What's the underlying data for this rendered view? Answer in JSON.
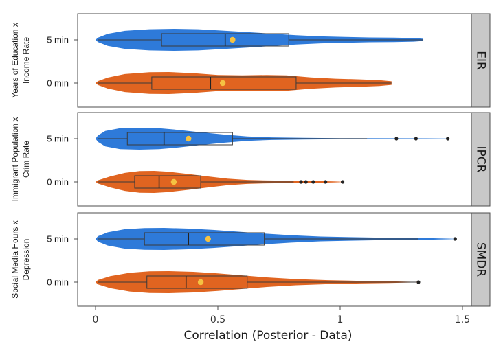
{
  "chart_data": {
    "type": "violin",
    "xlabel": "Correlation (Posterior - Data)",
    "xlim": [
      -0.08,
      1.58
    ],
    "x_ticks": [
      0,
      0.5,
      1,
      1.5
    ],
    "x_tick_labels": [
      "0",
      "0.5",
      "1",
      "1.5"
    ],
    "colors": {
      "5 min": "#2e7ad9",
      "0 min": "#e06420"
    },
    "panels": [
      {
        "strip": "EIR",
        "title_lines": [
          "Years of Education x",
          "Income Rate"
        ],
        "groups": [
          {
            "label": "5 min",
            "min": 0.01,
            "q1": 0.27,
            "median": 0.53,
            "q3": 0.79,
            "max": 1.34,
            "mean": 0.56,
            "outliers": [],
            "density": [
              [
                0.0,
                0.0
              ],
              [
                0.01,
                0.2
              ],
              [
                0.05,
                0.55
              ],
              [
                0.12,
                0.82
              ],
              [
                0.22,
                0.96
              ],
              [
                0.32,
                1.0
              ],
              [
                0.42,
                0.96
              ],
              [
                0.52,
                0.84
              ],
              [
                0.62,
                0.7
              ],
              [
                0.72,
                0.56
              ],
              [
                0.82,
                0.42
              ],
              [
                0.92,
                0.32
              ],
              [
                1.02,
                0.26
              ],
              [
                1.12,
                0.22
              ],
              [
                1.22,
                0.2
              ],
              [
                1.3,
                0.16
              ],
              [
                1.34,
                0.1
              ]
            ]
          },
          {
            "label": "0 min",
            "min": 0.01,
            "q1": 0.23,
            "median": 0.47,
            "q3": 0.82,
            "max": 1.21,
            "mean": 0.52,
            "outliers": [],
            "density": [
              [
                0.0,
                0.0
              ],
              [
                0.01,
                0.18
              ],
              [
                0.05,
                0.5
              ],
              [
                0.12,
                0.82
              ],
              [
                0.22,
                0.98
              ],
              [
                0.3,
                1.0
              ],
              [
                0.4,
                0.9
              ],
              [
                0.5,
                0.74
              ],
              [
                0.6,
                0.7
              ],
              [
                0.7,
                0.74
              ],
              [
                0.78,
                0.7
              ],
              [
                0.88,
                0.52
              ],
              [
                0.98,
                0.4
              ],
              [
                1.08,
                0.34
              ],
              [
                1.16,
                0.26
              ],
              [
                1.21,
                0.16
              ]
            ]
          }
        ]
      },
      {
        "strip": "IPCR",
        "title_lines": [
          "Immigrant Population x",
          "Crim Rate"
        ],
        "groups": [
          {
            "label": "5 min",
            "min": 0.01,
            "q1": 0.13,
            "median": 0.28,
            "q3": 0.56,
            "max": 1.11,
            "mean": 0.38,
            "outliers": [
              1.23,
              1.31,
              1.44
            ],
            "density": [
              [
                0.0,
                0.0
              ],
              [
                0.01,
                0.3
              ],
              [
                0.04,
                0.7
              ],
              [
                0.1,
                0.95
              ],
              [
                0.18,
                1.0
              ],
              [
                0.26,
                0.95
              ],
              [
                0.34,
                0.8
              ],
              [
                0.42,
                0.6
              ],
              [
                0.52,
                0.38
              ],
              [
                0.62,
                0.2
              ],
              [
                0.72,
                0.12
              ],
              [
                0.85,
                0.08
              ],
              [
                1.0,
                0.05
              ],
              [
                1.2,
                0.04
              ],
              [
                1.35,
                0.03
              ],
              [
                1.44,
                0.02
              ]
            ]
          },
          {
            "label": "0 min",
            "min": 0.01,
            "q1": 0.16,
            "median": 0.26,
            "q3": 0.43,
            "max": 0.81,
            "mean": 0.32,
            "outliers": [
              0.84,
              0.86,
              0.89,
              0.94,
              1.01
            ],
            "density": [
              [
                0.0,
                0.0
              ],
              [
                0.01,
                0.15
              ],
              [
                0.06,
                0.5
              ],
              [
                0.12,
                0.82
              ],
              [
                0.18,
                0.98
              ],
              [
                0.24,
                1.0
              ],
              [
                0.3,
                0.92
              ],
              [
                0.38,
                0.72
              ],
              [
                0.46,
                0.5
              ],
              [
                0.54,
                0.3
              ],
              [
                0.62,
                0.18
              ],
              [
                0.7,
                0.13
              ],
              [
                0.8,
                0.11
              ],
              [
                0.9,
                0.08
              ],
              [
                0.97,
                0.05
              ],
              [
                1.01,
                0.02
              ]
            ]
          }
        ]
      },
      {
        "strip": "SMDR",
        "title_lines": [
          "Social Media Hours x",
          "Depression"
        ],
        "groups": [
          {
            "label": "5 min",
            "min": 0.01,
            "q1": 0.2,
            "median": 0.38,
            "q3": 0.69,
            "max": 1.32,
            "mean": 0.46,
            "outliers": [
              1.47
            ],
            "density": [
              [
                0.0,
                0.0
              ],
              [
                0.01,
                0.25
              ],
              [
                0.05,
                0.6
              ],
              [
                0.12,
                0.88
              ],
              [
                0.2,
                0.98
              ],
              [
                0.28,
                1.0
              ],
              [
                0.38,
                0.94
              ],
              [
                0.48,
                0.82
              ],
              [
                0.58,
                0.66
              ],
              [
                0.68,
                0.5
              ],
              [
                0.8,
                0.34
              ],
              [
                0.92,
                0.22
              ],
              [
                1.04,
                0.16
              ],
              [
                1.16,
                0.12
              ],
              [
                1.28,
                0.08
              ],
              [
                1.38,
                0.06
              ],
              [
                1.47,
                0.02
              ]
            ]
          },
          {
            "label": "0 min",
            "min": 0.01,
            "q1": 0.21,
            "median": 0.37,
            "q3": 0.62,
            "max": 1.31,
            "mean": 0.43,
            "outliers": [
              1.32
            ],
            "density": [
              [
                0.0,
                0.0
              ],
              [
                0.01,
                0.2
              ],
              [
                0.06,
                0.55
              ],
              [
                0.14,
                0.85
              ],
              [
                0.22,
                0.98
              ],
              [
                0.3,
                1.0
              ],
              [
                0.4,
                0.94
              ],
              [
                0.5,
                0.8
              ],
              [
                0.6,
                0.62
              ],
              [
                0.7,
                0.44
              ],
              [
                0.82,
                0.28
              ],
              [
                0.95,
                0.18
              ],
              [
                1.08,
                0.12
              ],
              [
                1.2,
                0.08
              ],
              [
                1.32,
                0.02
              ]
            ]
          }
        ]
      }
    ]
  }
}
